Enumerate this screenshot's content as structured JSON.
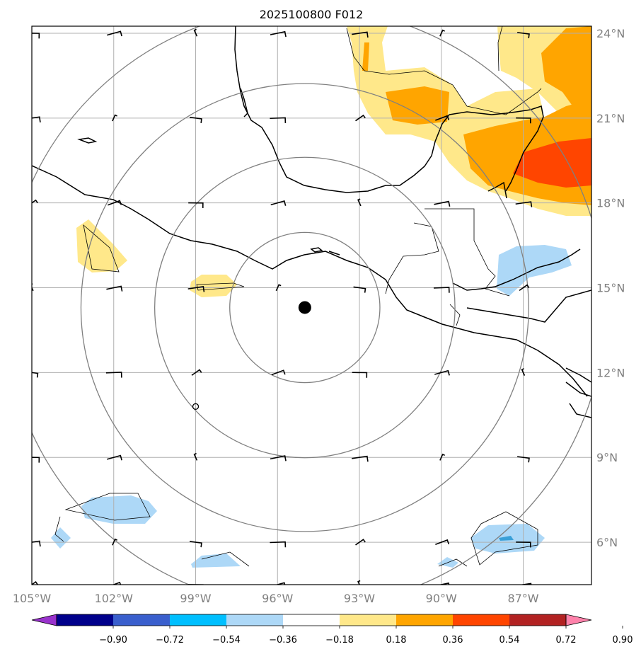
{
  "title": "2025100800 F012",
  "map": {
    "lon_range": [
      -105,
      -84.5
    ],
    "lat_range": [
      4.5,
      24.25
    ],
    "center": {
      "lon": -95.0,
      "lat": 14.3
    },
    "ring_radii_deg": [
      2.75,
      5.5,
      8.2,
      11.0
    ],
    "gridlines": true,
    "lon_ticks": [
      -105,
      -102,
      -99,
      -96,
      -93,
      -90,
      -87
    ],
    "lon_tick_labels": [
      "105°W",
      "102°W",
      "99°W",
      "96°W",
      "93°W",
      "90°W",
      "87°W"
    ],
    "lat_ticks": [
      6,
      9,
      12,
      15,
      18,
      21,
      24
    ],
    "lat_tick_labels": [
      "6°N",
      "9°N",
      "12°N",
      "15°N",
      "18°N",
      "21°N",
      "24°N"
    ]
  },
  "colorbar": {
    "levels": [
      -0.9,
      -0.72,
      -0.54,
      -0.36,
      -0.18,
      0.18,
      0.36,
      0.54,
      0.72,
      0.9
    ],
    "labels": [
      "−0.90",
      "−0.72",
      "−0.54",
      "−0.36",
      "−0.18",
      "0.18",
      "0.36",
      "0.54",
      "0.72",
      "0.90"
    ],
    "colors": [
      "#9932cc",
      "#00008b",
      "#3a5fcd",
      "#00bfff",
      "#add8f7",
      "#ffffff",
      "#ffe88a",
      "#ffa500",
      "#ff4500",
      "#b22222",
      "#ff82ab"
    ],
    "extend": "both"
  },
  "colors": {
    "gridline": "#b0b0b0",
    "ring": "#808080",
    "coast": "#000000",
    "center_marker": "#000000"
  }
}
